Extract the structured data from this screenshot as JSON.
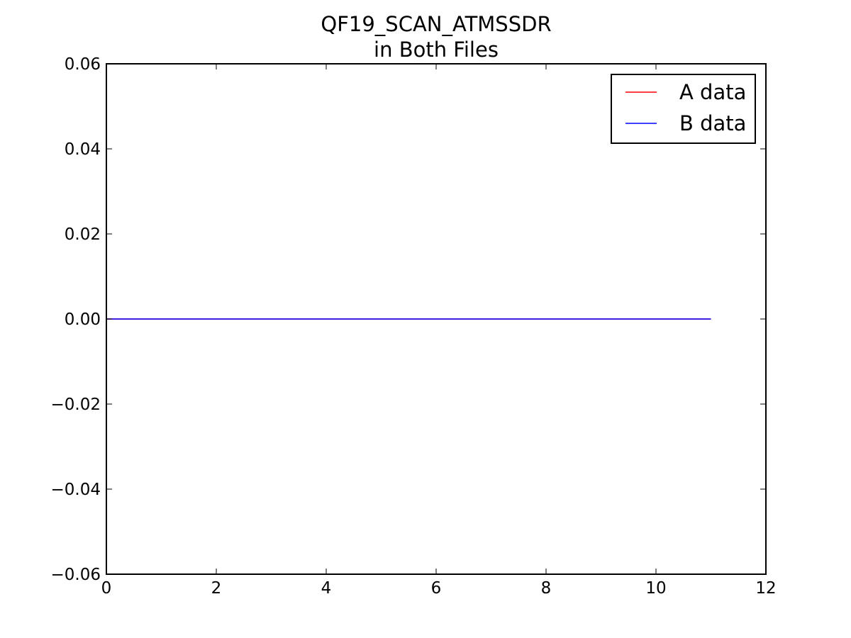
{
  "chart_data": {
    "type": "line",
    "title": "QF19_SCAN_ATMSSDR",
    "subtitle": "in Both Files",
    "xlabel": "",
    "ylabel": "",
    "xlim": [
      0,
      12
    ],
    "ylim": [
      -0.06,
      0.06
    ],
    "x_ticks": [
      "0",
      "2",
      "4",
      "6",
      "8",
      "10",
      "12"
    ],
    "y_ticks": [
      "−0.06",
      "−0.04",
      "−0.02",
      "0.00",
      "0.02",
      "0.04",
      "0.06"
    ],
    "grid": false,
    "legend_position": "top-right",
    "series": [
      {
        "name": "A data",
        "color": "#ff0000",
        "x": [
          0,
          1,
          2,
          3,
          4,
          5,
          6,
          7,
          8,
          9,
          10,
          11
        ],
        "y": [
          0,
          0,
          0,
          0,
          0,
          0,
          0,
          0,
          0,
          0,
          0,
          0
        ]
      },
      {
        "name": "B data",
        "color": "#0000ff",
        "x": [
          0,
          1,
          2,
          3,
          4,
          5,
          6,
          7,
          8,
          9,
          10,
          11
        ],
        "y": [
          0,
          0,
          0,
          0,
          0,
          0,
          0,
          0,
          0,
          0,
          0,
          0
        ]
      }
    ]
  }
}
